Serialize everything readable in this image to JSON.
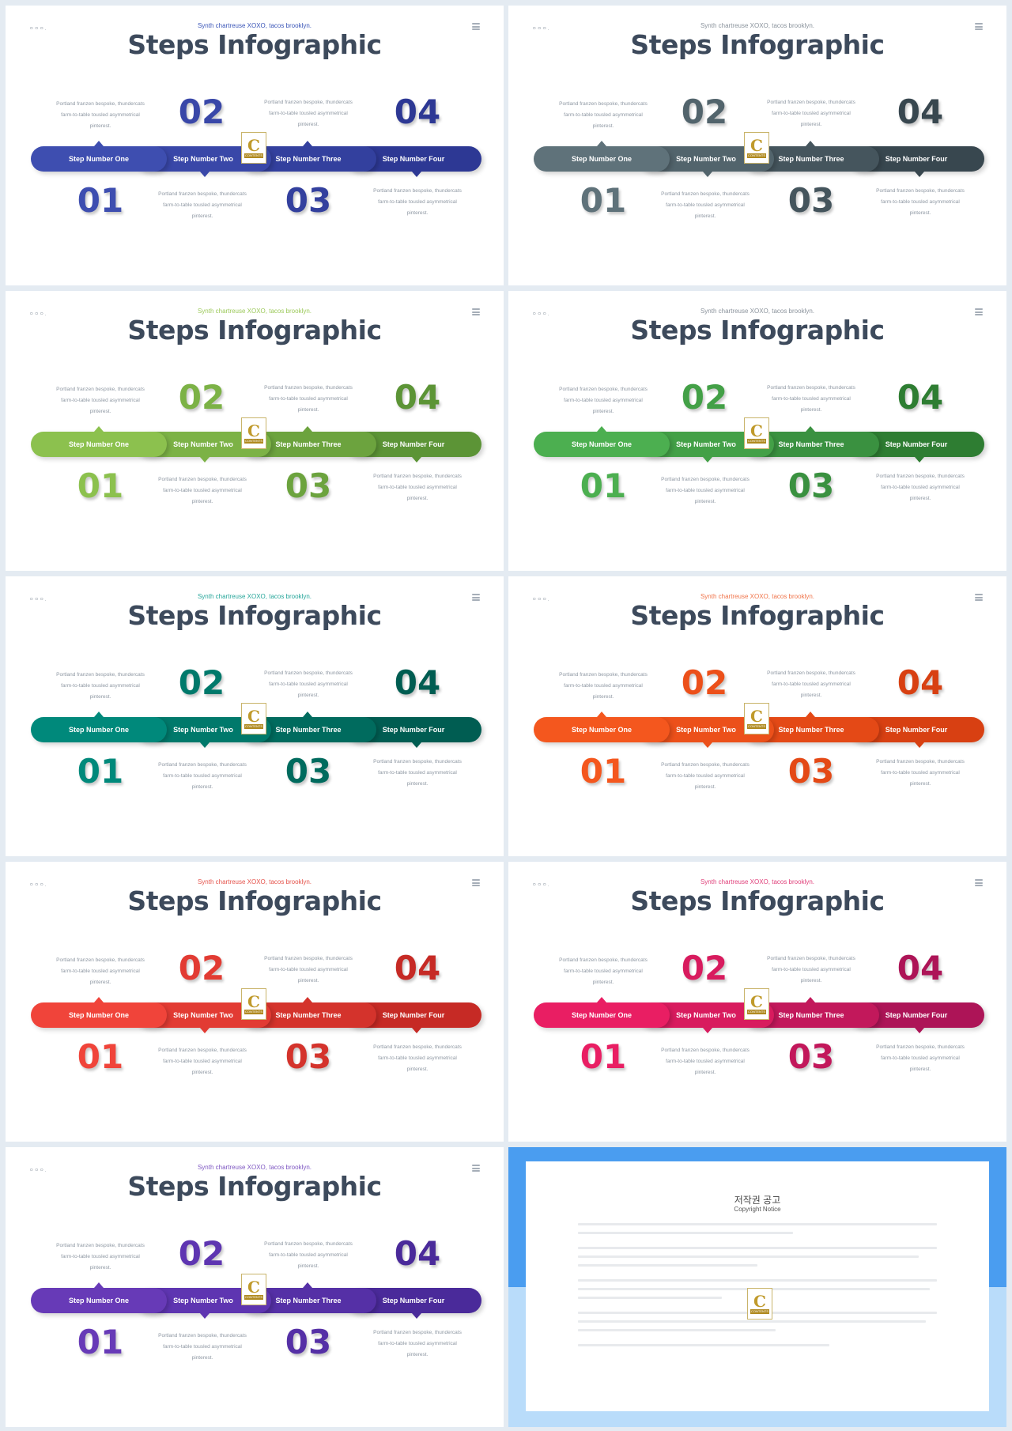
{
  "slides": [
    {
      "page_num": "ㅇㅇㅇ.",
      "subtitle": "Synth chartreuse XOXO, tacos brooklyn.",
      "title": "Steps Infographic",
      "numbers": [
        "01",
        "02",
        "03",
        "04"
      ],
      "step_labels": [
        "Step Number One",
        "Step Number Two",
        "Step Number Three",
        "Step Number Four"
      ],
      "desc_lines": [
        "Portland franzen bespoke, thundercats",
        "farm-to-table tousled asymmetrical",
        "pinterest."
      ],
      "accent": "#3b56b8",
      "colors": [
        "#3e4eb0",
        "#3947a8",
        "#33409e",
        "#2d3894"
      ],
      "badge": "C",
      "badge_text": "CONTENTS"
    },
    {
      "page_num": "ㅇㅇㅇ.",
      "subtitle": "Synth chartreuse XOXO, tacos brooklyn.",
      "title": "Steps Infographic",
      "numbers": [
        "01",
        "02",
        "03",
        "04"
      ],
      "step_labels": [
        "Step Number One",
        "Step Number Two",
        "Step Number Three",
        "Step Number Four"
      ],
      "desc_lines": [
        "Portland franzen bespoke, thundercats",
        "farm-to-table tousled asymmetrical",
        "pinterest."
      ],
      "accent": "#8a939c",
      "colors": [
        "#5f727a",
        "#52646c",
        "#45555d",
        "#38474f"
      ],
      "badge": "C",
      "badge_text": "CONTENTS"
    },
    {
      "page_num": "ㅇㅇㅇ.",
      "subtitle": "Synth chartreuse XOXO, tacos brooklyn.",
      "title": "Steps Infographic",
      "numbers": [
        "01",
        "02",
        "03",
        "04"
      ],
      "step_labels": [
        "Step Number One",
        "Step Number Two",
        "Step Number Three",
        "Step Number Four"
      ],
      "desc_lines": [
        "Portland franzen bespoke, thundercats",
        "farm-to-table tousled asymmetrical",
        "pinterest."
      ],
      "accent": "#9cc95a",
      "colors": [
        "#8cc14e",
        "#7cb246",
        "#6ca33e",
        "#5c9436"
      ],
      "badge": "C",
      "badge_text": "CONTENTS"
    },
    {
      "page_num": "ㅇㅇㅇ.",
      "subtitle": "Synth chartreuse XOXO, tacos brooklyn.",
      "title": "Steps Infographic",
      "numbers": [
        "01",
        "02",
        "03",
        "04"
      ],
      "step_labels": [
        "Step Number One",
        "Step Number Two",
        "Step Number Three",
        "Step Number Four"
      ],
      "desc_lines": [
        "Portland franzen bespoke, thundercats",
        "farm-to-table tousled asymmetrical",
        "pinterest."
      ],
      "accent": "#8b939c",
      "colors": [
        "#4caf50",
        "#43a047",
        "#3a9140",
        "#2e7d32"
      ],
      "badge": "C",
      "badge_text": "CONTENTS"
    },
    {
      "page_num": "ㅇㅇㅇ.",
      "subtitle": "Synth chartreuse XOXO, tacos brooklyn.",
      "title": "Steps Infographic",
      "numbers": [
        "01",
        "02",
        "03",
        "04"
      ],
      "step_labels": [
        "Step Number One",
        "Step Number Two",
        "Step Number Three",
        "Step Number Four"
      ],
      "desc_lines": [
        "Portland franzen bespoke, thundercats",
        "farm-to-table tousled asymmetrical",
        "pinterest."
      ],
      "accent": "#26a69a",
      "colors": [
        "#00897b",
        "#00796b",
        "#006b5e",
        "#005d52"
      ],
      "badge": "C",
      "badge_text": "CONTENTS"
    },
    {
      "page_num": "ㅇㅇㅇ.",
      "subtitle": "Synth chartreuse XOXO, tacos brooklyn.",
      "title": "Steps Infographic",
      "numbers": [
        "01",
        "02",
        "03",
        "04"
      ],
      "step_labels": [
        "Step Number One",
        "Step Number Two",
        "Step Number Three",
        "Step Number Four"
      ],
      "desc_lines": [
        "Portland franzen bespoke, thundercats",
        "farm-to-table tousled asymmetrical",
        "pinterest."
      ],
      "accent": "#f0744a",
      "colors": [
        "#f4571e",
        "#ec501a",
        "#e44916",
        "#d84012"
      ],
      "badge": "C",
      "badge_text": "CONTENTS"
    },
    {
      "page_num": "ㅇㅇㅇ.",
      "subtitle": "Synth chartreuse XOXO, tacos brooklyn.",
      "title": "Steps Infographic",
      "numbers": [
        "01",
        "02",
        "03",
        "04"
      ],
      "step_labels": [
        "Step Number One",
        "Step Number Two",
        "Step Number Three",
        "Step Number Four"
      ],
      "desc_lines": [
        "Portland franzen bespoke, thundercats",
        "farm-to-table tousled asymmetrical",
        "pinterest."
      ],
      "accent": "#e5534b",
      "colors": [
        "#f0443a",
        "#e23b33",
        "#d4332c",
        "#c62a25"
      ],
      "badge": "C",
      "badge_text": "CONTENTS"
    },
    {
      "page_num": "ㅇㅇㅇ.",
      "subtitle": "Synth chartreuse XOXO, tacos brooklyn.",
      "title": "Steps Infographic",
      "numbers": [
        "01",
        "02",
        "03",
        "04"
      ],
      "step_labels": [
        "Step Number One",
        "Step Number Two",
        "Step Number Three",
        "Step Number Four"
      ],
      "desc_lines": [
        "Portland franzen bespoke, thundercats",
        "farm-to-table tousled asymmetrical",
        "pinterest."
      ],
      "accent": "#e0407a",
      "colors": [
        "#e91e63",
        "#d81b5e",
        "#c2185b",
        "#ad1457"
      ],
      "badge": "C",
      "badge_text": "CONTENTS"
    },
    {
      "page_num": "ㅇㅇㅇ.",
      "subtitle": "Synth chartreuse XOXO, tacos brooklyn.",
      "title": "Steps Infographic",
      "numbers": [
        "01",
        "02",
        "03",
        "04"
      ],
      "step_labels": [
        "Step Number One",
        "Step Number Two",
        "Step Number Three",
        "Step Number Four"
      ],
      "desc_lines": [
        "Portland franzen bespoke, thundercats",
        "farm-to-table tousled asymmetrical",
        "pinterest."
      ],
      "accent": "#7e57c2",
      "colors": [
        "#673ab7",
        "#5e35b1",
        "#5530a6",
        "#4a2a9a"
      ],
      "badge": "C",
      "badge_text": "CONTENTS"
    }
  ],
  "copyright": {
    "title": "저작권 공고",
    "subtitle": "Copyright Notice",
    "badge": "C",
    "badge_text": "CONTENTS",
    "colors": {
      "frame_top": "#4a9df0",
      "frame_bottom": "#b9dcfa"
    }
  }
}
